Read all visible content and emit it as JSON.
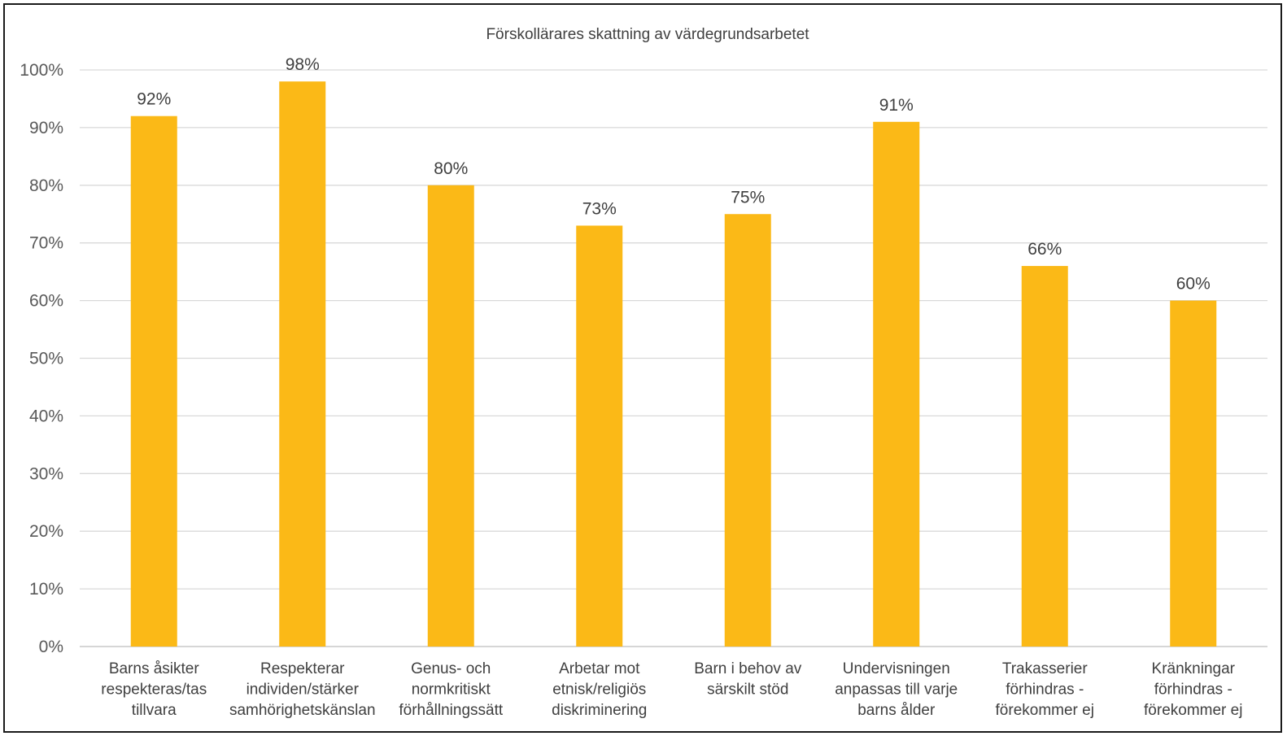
{
  "chart_data": {
    "type": "bar",
    "title": "Förskollärares skattning av värdegrundsarbetet",
    "xlabel": "",
    "ylabel": "",
    "ylim": [
      0,
      100
    ],
    "yticks": [
      "0%",
      "10%",
      "20%",
      "30%",
      "40%",
      "50%",
      "60%",
      "70%",
      "80%",
      "90%",
      "100%"
    ],
    "grid": true,
    "legend": "none",
    "bar_color": "#FBB917",
    "categories": [
      [
        "Barns åsikter",
        "respekteras/tas",
        "tillvara"
      ],
      [
        "Respekterar",
        "individen/stärker",
        "samhörighetskänslan"
      ],
      [
        "Genus- och",
        "normkritiskt",
        "förhållningssätt"
      ],
      [
        "Arbetar mot",
        "etnisk/religiös",
        "diskriminering"
      ],
      [
        "Barn i behov av",
        "särskilt stöd"
      ],
      [
        "Undervisningen",
        "anpassas till varje",
        "barns ålder"
      ],
      [
        "Trakasserier",
        "förhindras -",
        "förekommer ej"
      ],
      [
        "Kränkningar",
        "förhindras -",
        "förekommer ej"
      ]
    ],
    "values": [
      92,
      98,
      80,
      73,
      75,
      91,
      66,
      60
    ],
    "data_labels": [
      "92%",
      "98%",
      "80%",
      "73%",
      "75%",
      "91%",
      "66%",
      "60%"
    ]
  }
}
